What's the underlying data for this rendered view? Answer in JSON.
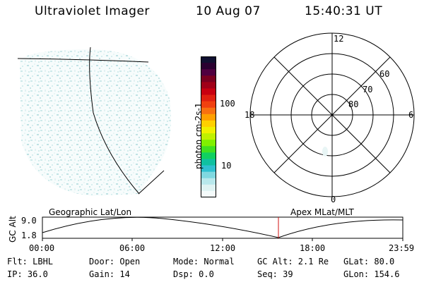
{
  "header": {
    "instrument": "Ultraviolet Imager",
    "date": "10 Aug 07",
    "time": "15:40:31 UT"
  },
  "colorbar": {
    "unit_label": "photon cm-2s-1",
    "ticks": [
      "100",
      "10"
    ],
    "colors": [
      "#101030",
      "#2a0030",
      "#500040",
      "#7a0020",
      "#a00018",
      "#c80010",
      "#e02010",
      "#f04010",
      "#f87010",
      "#ffa000",
      "#ffd000",
      "#f0f000",
      "#c0f000",
      "#80f000",
      "#40e020",
      "#10d060",
      "#10c0a0",
      "#30c0d0",
      "#80d8e0",
      "#b8e8ec",
      "#dff3f3",
      "#f4fbfb"
    ]
  },
  "polar": {
    "mlt_labels": {
      "top": "12",
      "bottom": "0",
      "left": "18",
      "right": "6"
    },
    "lat_labels": [
      "60",
      "70",
      "80"
    ]
  },
  "axes": {
    "left_label": "Geographic Lat/Lon",
    "right_label": "Apex MLat/MLT"
  },
  "altitude_plot": {
    "ylabel": "GC Alt",
    "yticks": [
      "9.0",
      "1.8"
    ],
    "xticks": [
      "00:00",
      "06:00",
      "12:00",
      "18:00",
      "23:59"
    ]
  },
  "status": {
    "flt": "Flt: LBHL",
    "ip": "IP: 36.0",
    "door": "Door: Open",
    "gain": "Gain: 14",
    "mode": "Mode: Normal",
    "dsp": "Dsp:    0.0",
    "gc_alt": "GC Alt: 2.1 Re",
    "seq": "Seq: 39",
    "glat": "GLat:  80.0",
    "glon": "GLon: 154.6"
  }
}
